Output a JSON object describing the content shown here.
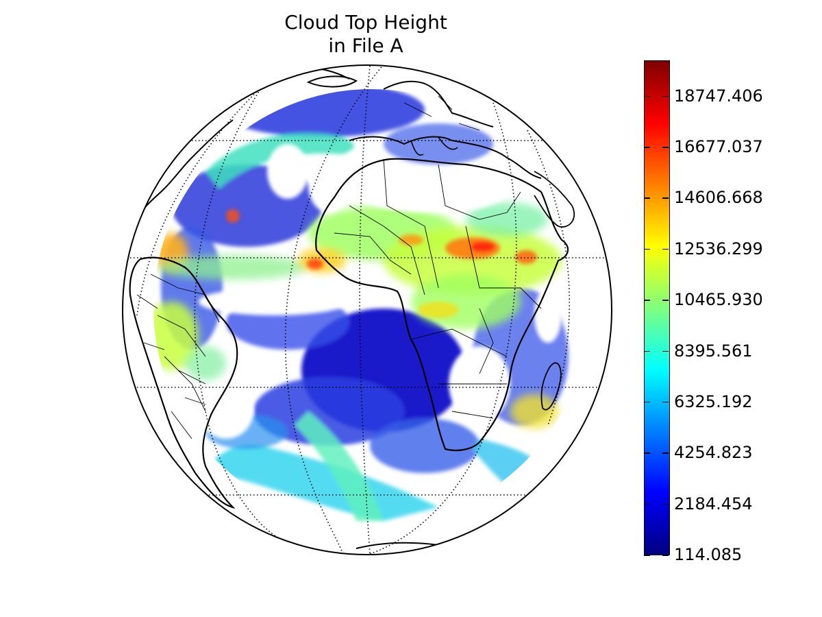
{
  "title": {
    "line1": "Cloud Top Height",
    "line2": "in File A"
  },
  "colorbar": {
    "min": 114.085,
    "max": 20217.0,
    "ticks": [
      {
        "value": 114.085,
        "label": "114.085"
      },
      {
        "value": 2184.454,
        "label": "2184.454"
      },
      {
        "value": 4254.823,
        "label": "4254.823"
      },
      {
        "value": 6325.192,
        "label": "6325.192"
      },
      {
        "value": 8395.561,
        "label": "8395.561"
      },
      {
        "value": 10465.93,
        "label": "10465.930"
      },
      {
        "value": 12536.299,
        "label": "12536.299"
      },
      {
        "value": 14606.668,
        "label": "14606.668"
      },
      {
        "value": 16677.037,
        "label": "16677.037"
      },
      {
        "value": 18747.406,
        "label": "18747.406"
      }
    ],
    "colormap": [
      "#00007f",
      "#0000ff",
      "#007fff",
      "#00ffff",
      "#7fff7f",
      "#ffff00",
      "#ff7f00",
      "#ff0000",
      "#7f0000"
    ]
  },
  "map": {
    "projection": "orthographic",
    "graticule": "dotted",
    "coastlines": true,
    "country_borders": true
  }
}
